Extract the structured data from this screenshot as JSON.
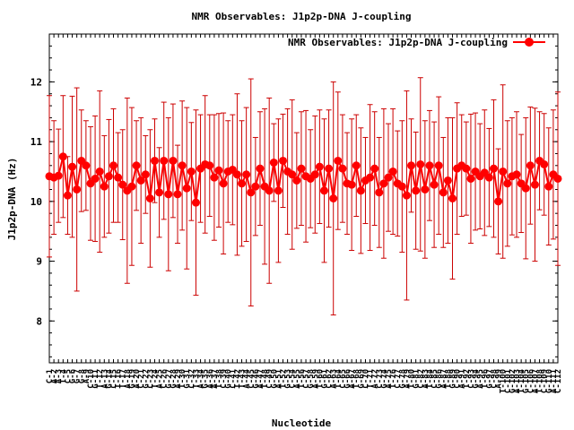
{
  "chart_data": {
    "type": "line",
    "title": "NMR Observables: J1p2p-DNA J-coupling",
    "xlabel": "Nucleotide",
    "ylabel": "J1p2p-DNA (Hz)",
    "ylim": [
      7.3,
      12.8
    ],
    "xlim": [
      1,
      112
    ],
    "y_ticks": [
      8,
      9,
      10,
      11,
      12
    ],
    "grid": false,
    "legend_position": "top-right",
    "series": [
      {
        "name": "NMR Observables: J1p2p-DNA J-coupling",
        "color": "#ff0000",
        "error_color": "#cc0000",
        "marker": "circle",
        "x": [
          1,
          2,
          3,
          4,
          5,
          6,
          7,
          8,
          9,
          10,
          11,
          12,
          13,
          14,
          15,
          16,
          17,
          18,
          19,
          20,
          21,
          22,
          23,
          24,
          25,
          26,
          27,
          28,
          29,
          30,
          31,
          32,
          33,
          34,
          35,
          36,
          37,
          38,
          39,
          40,
          41,
          42,
          43,
          44,
          45,
          46,
          47,
          48,
          49,
          50,
          51,
          52,
          53,
          54,
          55,
          56,
          57,
          58,
          59,
          60,
          61,
          62,
          63,
          64,
          65,
          66,
          67,
          68,
          69,
          70,
          71,
          72,
          73,
          74,
          75,
          76,
          77,
          78,
          79,
          80,
          81,
          82,
          83,
          84,
          85,
          86,
          87,
          88,
          89,
          90,
          91,
          92,
          93,
          94,
          95,
          96,
          97,
          98,
          99,
          100,
          101,
          102,
          103,
          104,
          105,
          106,
          107,
          108,
          109,
          110,
          111,
          112
        ],
        "values": [
          10.42,
          10.4,
          10.43,
          10.75,
          10.1,
          10.58,
          10.2,
          10.68,
          10.6,
          10.3,
          10.38,
          10.5,
          10.25,
          10.42,
          10.6,
          10.4,
          10.28,
          10.18,
          10.25,
          10.6,
          10.35,
          10.45,
          10.05,
          10.68,
          10.15,
          10.68,
          10.12,
          10.68,
          10.12,
          10.6,
          10.22,
          10.5,
          9.98,
          10.55,
          10.62,
          10.6,
          10.4,
          10.52,
          10.3,
          10.5,
          10.53,
          10.45,
          10.3,
          10.45,
          10.15,
          10.25,
          10.55,
          10.25,
          10.18,
          10.65,
          10.18,
          10.68,
          10.5,
          10.45,
          10.35,
          10.55,
          10.42,
          10.38,
          10.45,
          10.58,
          10.18,
          10.55,
          10.05,
          10.68,
          10.55,
          10.3,
          10.28,
          10.6,
          10.18,
          10.35,
          10.4,
          10.55,
          10.15,
          10.3,
          10.4,
          10.5,
          10.3,
          10.25,
          10.1,
          10.6,
          10.18,
          10.62,
          10.2,
          10.6,
          10.28,
          10.6,
          10.15,
          10.35,
          10.05,
          10.55,
          10.6,
          10.55,
          10.38,
          10.5,
          10.42,
          10.48,
          10.4,
          10.55,
          10.0,
          10.5,
          10.3,
          10.42,
          10.45,
          10.3,
          10.22,
          10.6,
          10.28,
          10.68,
          10.62,
          10.25,
          10.45,
          10.38
        ],
        "error": [
          1.35,
          0.95,
          0.78,
          1.02,
          0.65,
          1.18,
          1.7,
          0.85,
          0.75,
          0.95,
          1.05,
          1.35,
          0.85,
          0.95,
          0.95,
          0.75,
          0.92,
          1.55,
          1.32,
          0.75,
          1.05,
          0.65,
          1.15,
          0.7,
          0.75,
          0.98,
          1.28,
          0.95,
          0.82,
          1.08,
          1.35,
          0.82,
          1.55,
          0.9,
          1.15,
          0.85,
          1.05,
          0.95,
          1.18,
          0.85,
          0.92,
          1.35,
          1.05,
          1.12,
          1.9,
          0.82,
          0.95,
          1.3,
          1.55,
          0.65,
          1.2,
          0.78,
          1.05,
          1.25,
          0.8,
          0.95,
          1.1,
          0.82,
          0.98,
          0.95,
          1.2,
          0.98,
          1.95,
          1.15,
          0.9,
          0.85,
          1.1,
          0.85,
          1.05,
          0.72,
          1.22,
          0.95,
          0.92,
          1.25,
          0.9,
          1.05,
          0.88,
          1.1,
          1.75,
          0.78,
          0.98,
          1.45,
          1.15,
          0.92,
          1.05,
          1.15,
          0.92,
          1.05,
          1.35,
          1.1,
          0.85,
          0.78,
          1.08,
          0.98,
          0.88,
          1.05,
          0.82,
          1.15,
          0.88,
          1.45,
          1.05,
          0.98,
          1.05,
          0.82,
          1.18,
          0.98,
          1.28,
          0.82,
          0.85,
          0.98,
          1.08,
          1.45
        ]
      }
    ],
    "categories": [
      "C-1",
      "A-2",
      "A-3",
      "T-4",
      "C-5",
      "G-6",
      "G-7",
      "G-8",
      "A-9",
      "C-10",
      "G-11",
      "T-12",
      "A-13",
      "G-14",
      "C-15",
      "T-16",
      "T-17",
      "A-18",
      "G-19",
      "A-20",
      "C-21",
      "G-22",
      "C-23",
      "T-24",
      "A-25",
      "C-26",
      "G-27",
      "G-28",
      "A-29",
      "T-30",
      "G-31",
      "C-32",
      "T-33",
      "A-34",
      "G-35",
      "A-36",
      "A-37",
      "T-38",
      "C-39",
      "G-40",
      "C-41",
      "T-42",
      "T-43",
      "A-44",
      "C-45",
      "G-46",
      "A-47",
      "T-48",
      "C-49",
      "G-50",
      "A-51",
      "T-52",
      "G-53",
      "C-54",
      "A-55",
      "T-56",
      "C-57",
      "G-58",
      "A-59",
      "T-60",
      "G-61",
      "C-62",
      "A-63",
      "T-64",
      "C-65",
      "G-66",
      "A-67",
      "T-68",
      "G-69",
      "C-70",
      "T-71",
      "A-72",
      "C-73",
      "G-74",
      "A-75",
      "T-76",
      "C-77",
      "G-78",
      "A-79",
      "T-80",
      "G-81",
      "C-82",
      "A-83",
      "T-84",
      "C-85",
      "G-86",
      "A-87",
      "T-88",
      "G-89",
      "C-90",
      "A-91",
      "T-92",
      "C-93",
      "G-94",
      "A-95",
      "T-96",
      "G-97",
      "C-98",
      "A-99",
      "T-100",
      "C-101",
      "G-102",
      "A-103",
      "T-104",
      "G-105",
      "C-106",
      "A-107",
      "T-108",
      "C-109",
      "G-110",
      "A-111",
      "C-112"
    ]
  }
}
